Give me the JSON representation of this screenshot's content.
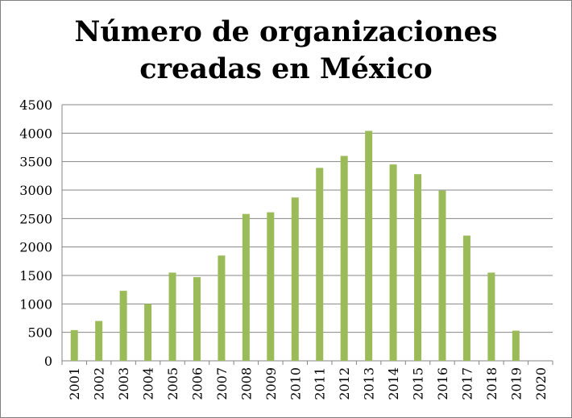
{
  "chart_data": {
    "type": "bar",
    "title_lines": [
      "Número de organizaciones",
      "creadas en México"
    ],
    "categories": [
      "2001",
      "2002",
      "2003",
      "2004",
      "2005",
      "2006",
      "2007",
      "2008",
      "2009",
      "2010",
      "2011",
      "2012",
      "2013",
      "2014",
      "2015",
      "2016",
      "2017",
      "2018",
      "2019",
      "2020"
    ],
    "values": [
      540,
      700,
      1230,
      1000,
      1550,
      1470,
      1850,
      2580,
      2610,
      2870,
      3390,
      3600,
      4040,
      3450,
      3280,
      2990,
      2200,
      1550,
      530,
      0
    ],
    "ylim": [
      0,
      4500
    ],
    "yticks": [
      0,
      500,
      1000,
      1500,
      2000,
      2500,
      3000,
      3500,
      4000,
      4500
    ],
    "grid": true,
    "bar_color": "#9bbb59",
    "xlabel": "",
    "ylabel": ""
  }
}
